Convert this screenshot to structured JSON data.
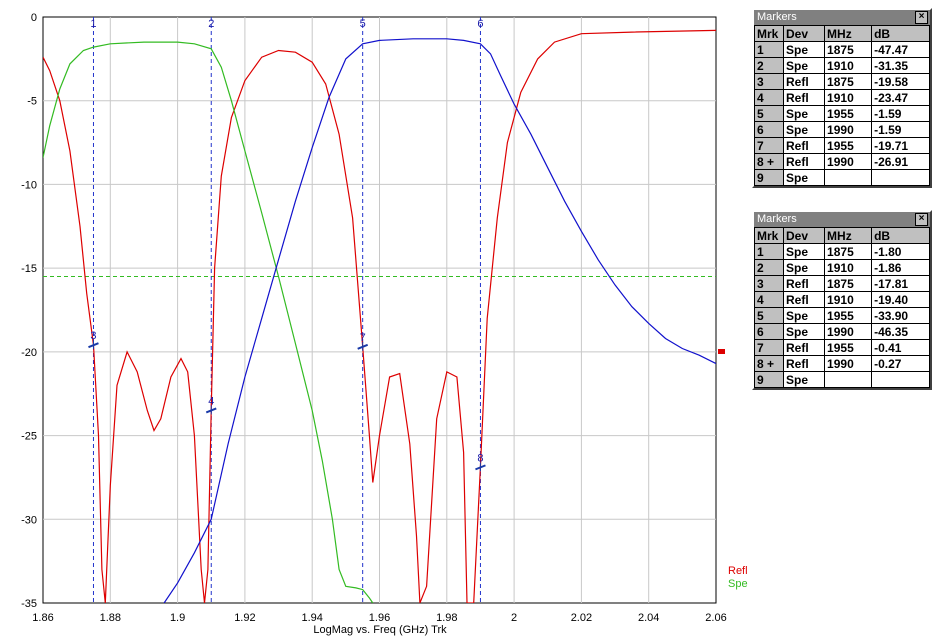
{
  "chart_data": {
    "type": "line",
    "xlabel": "LogMag vs. Freq (GHz)  Trk",
    "x_ticks": [
      "1.86",
      "1.88",
      "1.9",
      "1.92",
      "1.94",
      "1.96",
      "1.98",
      "2",
      "2.02",
      "2.04",
      "2.06"
    ],
    "y_ticks": [
      "0",
      "-5",
      "-10",
      "-15",
      "-20",
      "-25",
      "-30",
      "-35"
    ],
    "xlim": [
      1.86,
      2.06
    ],
    "ylim": [
      -35,
      0
    ],
    "grid": true,
    "legend_position": "bottom-right",
    "series": [
      {
        "name": "Refl",
        "color": "#dd0000",
        "points": [
          [
            1.86,
            -2.4
          ],
          [
            1.862,
            -3.2
          ],
          [
            1.865,
            -5.0
          ],
          [
            1.868,
            -8.0
          ],
          [
            1.871,
            -12.5
          ],
          [
            1.873,
            -16.5
          ],
          [
            1.875,
            -19.6
          ],
          [
            1.8765,
            -25
          ],
          [
            1.8775,
            -33
          ],
          [
            1.8785,
            -35
          ],
          [
            1.88,
            -28
          ],
          [
            1.882,
            -22
          ],
          [
            1.885,
            -20.0
          ],
          [
            1.888,
            -21.2
          ],
          [
            1.891,
            -23.5
          ],
          [
            1.893,
            -24.7
          ],
          [
            1.895,
            -24.0
          ],
          [
            1.898,
            -21.5
          ],
          [
            1.901,
            -20.4
          ],
          [
            1.903,
            -21.2
          ],
          [
            1.905,
            -25
          ],
          [
            1.907,
            -33
          ],
          [
            1.908,
            -35
          ],
          [
            1.909,
            -33
          ],
          [
            1.91,
            -23.5
          ],
          [
            1.911,
            -15
          ],
          [
            1.913,
            -9.5
          ],
          [
            1.916,
            -6.0
          ],
          [
            1.92,
            -3.8
          ],
          [
            1.925,
            -2.4
          ],
          [
            1.93,
            -2.0
          ],
          [
            1.935,
            -2.1
          ],
          [
            1.94,
            -2.7
          ],
          [
            1.944,
            -4.0
          ],
          [
            1.948,
            -7.0
          ],
          [
            1.952,
            -12.0
          ],
          [
            1.955,
            -19.7
          ],
          [
            1.957,
            -25
          ],
          [
            1.958,
            -27.8
          ],
          [
            1.96,
            -25.0
          ],
          [
            1.963,
            -21.5
          ],
          [
            1.966,
            -21.3
          ],
          [
            1.969,
            -25.5
          ],
          [
            1.971,
            -31
          ],
          [
            1.972,
            -35
          ],
          [
            1.974,
            -34
          ],
          [
            1.977,
            -24
          ],
          [
            1.98,
            -21.2
          ],
          [
            1.983,
            -21.5
          ],
          [
            1.985,
            -26
          ],
          [
            1.986,
            -35
          ],
          [
            1.988,
            -35
          ],
          [
            1.99,
            -26.9
          ],
          [
            1.992,
            -18.0
          ],
          [
            1.995,
            -12.0
          ],
          [
            1.998,
            -7.5
          ],
          [
            2.002,
            -4.5
          ],
          [
            2.007,
            -2.5
          ],
          [
            2.012,
            -1.5
          ],
          [
            2.02,
            -1.0
          ],
          [
            2.035,
            -0.9
          ],
          [
            2.06,
            -0.8
          ]
        ]
      },
      {
        "name": "Spe",
        "color": "#33bb22",
        "points": [
          [
            1.86,
            -8.4
          ],
          [
            1.862,
            -6.5
          ],
          [
            1.865,
            -4.3
          ],
          [
            1.868,
            -2.8
          ],
          [
            1.872,
            -2.0
          ],
          [
            1.875,
            -1.8
          ],
          [
            1.88,
            -1.6
          ],
          [
            1.89,
            -1.5
          ],
          [
            1.9,
            -1.5
          ],
          [
            1.905,
            -1.6
          ],
          [
            1.91,
            -1.9
          ],
          [
            1.913,
            -3.0
          ],
          [
            1.916,
            -5.0
          ],
          [
            1.92,
            -8.0
          ],
          [
            1.925,
            -11.7
          ],
          [
            1.93,
            -15.5
          ],
          [
            1.935,
            -19.5
          ],
          [
            1.94,
            -23.5
          ],
          [
            1.943,
            -26.5
          ],
          [
            1.946,
            -30.0
          ],
          [
            1.948,
            -33.0
          ],
          [
            1.95,
            -34.0
          ],
          [
            1.953,
            -34.1
          ],
          [
            1.955,
            -34.2
          ],
          [
            1.957,
            -34.7
          ],
          [
            1.958,
            -35.0
          ]
        ]
      },
      {
        "name": "",
        "color": "#1111cc",
        "points": [
          [
            1.896,
            -35
          ],
          [
            1.9,
            -33.8
          ],
          [
            1.905,
            -32.0
          ],
          [
            1.91,
            -30.0
          ],
          [
            1.915,
            -25.5
          ],
          [
            1.92,
            -21.5
          ],
          [
            1.925,
            -18.0
          ],
          [
            1.93,
            -14.5
          ],
          [
            1.935,
            -11.0
          ],
          [
            1.94,
            -7.8
          ],
          [
            1.945,
            -4.8
          ],
          [
            1.95,
            -2.5
          ],
          [
            1.955,
            -1.6
          ],
          [
            1.96,
            -1.4
          ],
          [
            1.97,
            -1.3
          ],
          [
            1.98,
            -1.3
          ],
          [
            1.985,
            -1.4
          ],
          [
            1.99,
            -1.6
          ],
          [
            1.993,
            -2.2
          ],
          [
            1.996,
            -3.5
          ],
          [
            2.0,
            -5.2
          ],
          [
            2.005,
            -7.0
          ],
          [
            2.01,
            -9.0
          ],
          [
            2.015,
            -11.0
          ],
          [
            2.02,
            -12.8
          ],
          [
            2.025,
            -14.5
          ],
          [
            2.03,
            -16.0
          ],
          [
            2.035,
            -17.3
          ],
          [
            2.04,
            -18.3
          ],
          [
            2.045,
            -19.2
          ],
          [
            2.05,
            -19.8
          ],
          [
            2.055,
            -20.2
          ],
          [
            2.06,
            -20.7
          ]
        ]
      }
    ],
    "reference_line": {
      "y": -15.5,
      "color": "#33bb22"
    },
    "marker_lines": [
      {
        "label": "1",
        "x": 1.875
      },
      {
        "label": "2",
        "x": 1.91
      },
      {
        "label": "5",
        "x": 1.955
      },
      {
        "label": "6",
        "x": 1.99
      }
    ],
    "marker_points": [
      {
        "label": "3",
        "x": 1.875,
        "y": -19.6
      },
      {
        "label": "4",
        "x": 1.91,
        "y": -23.5
      },
      {
        "label": "7",
        "x": 1.955,
        "y": -19.7
      },
      {
        "label": "8",
        "x": 1.99,
        "y": -26.9
      }
    ],
    "legend": [
      {
        "label": "Refl",
        "color": "#dd0000"
      },
      {
        "label": "Spe",
        "color": "#33bb22"
      }
    ]
  },
  "markers_panel_1": {
    "title": "Markers",
    "close": "×",
    "headers": [
      "Mrk",
      "Dev",
      "MHz",
      "dB"
    ],
    "rows": [
      [
        "1",
        "Spe",
        "1875",
        "-47.47"
      ],
      [
        "2",
        "Spe",
        "1910",
        "-31.35"
      ],
      [
        "3",
        "Refl",
        "1875",
        "-19.58"
      ],
      [
        "4",
        "Refl",
        "1910",
        "-23.47"
      ],
      [
        "5",
        "Spe",
        "1955",
        "-1.59"
      ],
      [
        "6",
        "Spe",
        "1990",
        "-1.59"
      ],
      [
        "7",
        "Refl",
        "1955",
        "-19.71"
      ],
      [
        "8 +",
        "Refl",
        "1990",
        "-26.91"
      ],
      [
        "9",
        "Spe",
        "",
        ""
      ]
    ]
  },
  "markers_panel_2": {
    "title": "Markers",
    "close": "×",
    "headers": [
      "Mrk",
      "Dev",
      "MHz",
      "dB"
    ],
    "rows": [
      [
        "1",
        "Spe",
        "1875",
        "-1.80"
      ],
      [
        "2",
        "Spe",
        "1910",
        "-1.86"
      ],
      [
        "3",
        "Refl",
        "1875",
        "-17.81"
      ],
      [
        "4",
        "Refl",
        "1910",
        "-19.40"
      ],
      [
        "5",
        "Spe",
        "1955",
        "-33.90"
      ],
      [
        "6",
        "Spe",
        "1990",
        "-46.35"
      ],
      [
        "7",
        "Refl",
        "1955",
        "-0.41"
      ],
      [
        "8 +",
        "Refl",
        "1990",
        "-0.27"
      ],
      [
        "9",
        "Spe",
        "",
        ""
      ]
    ]
  }
}
